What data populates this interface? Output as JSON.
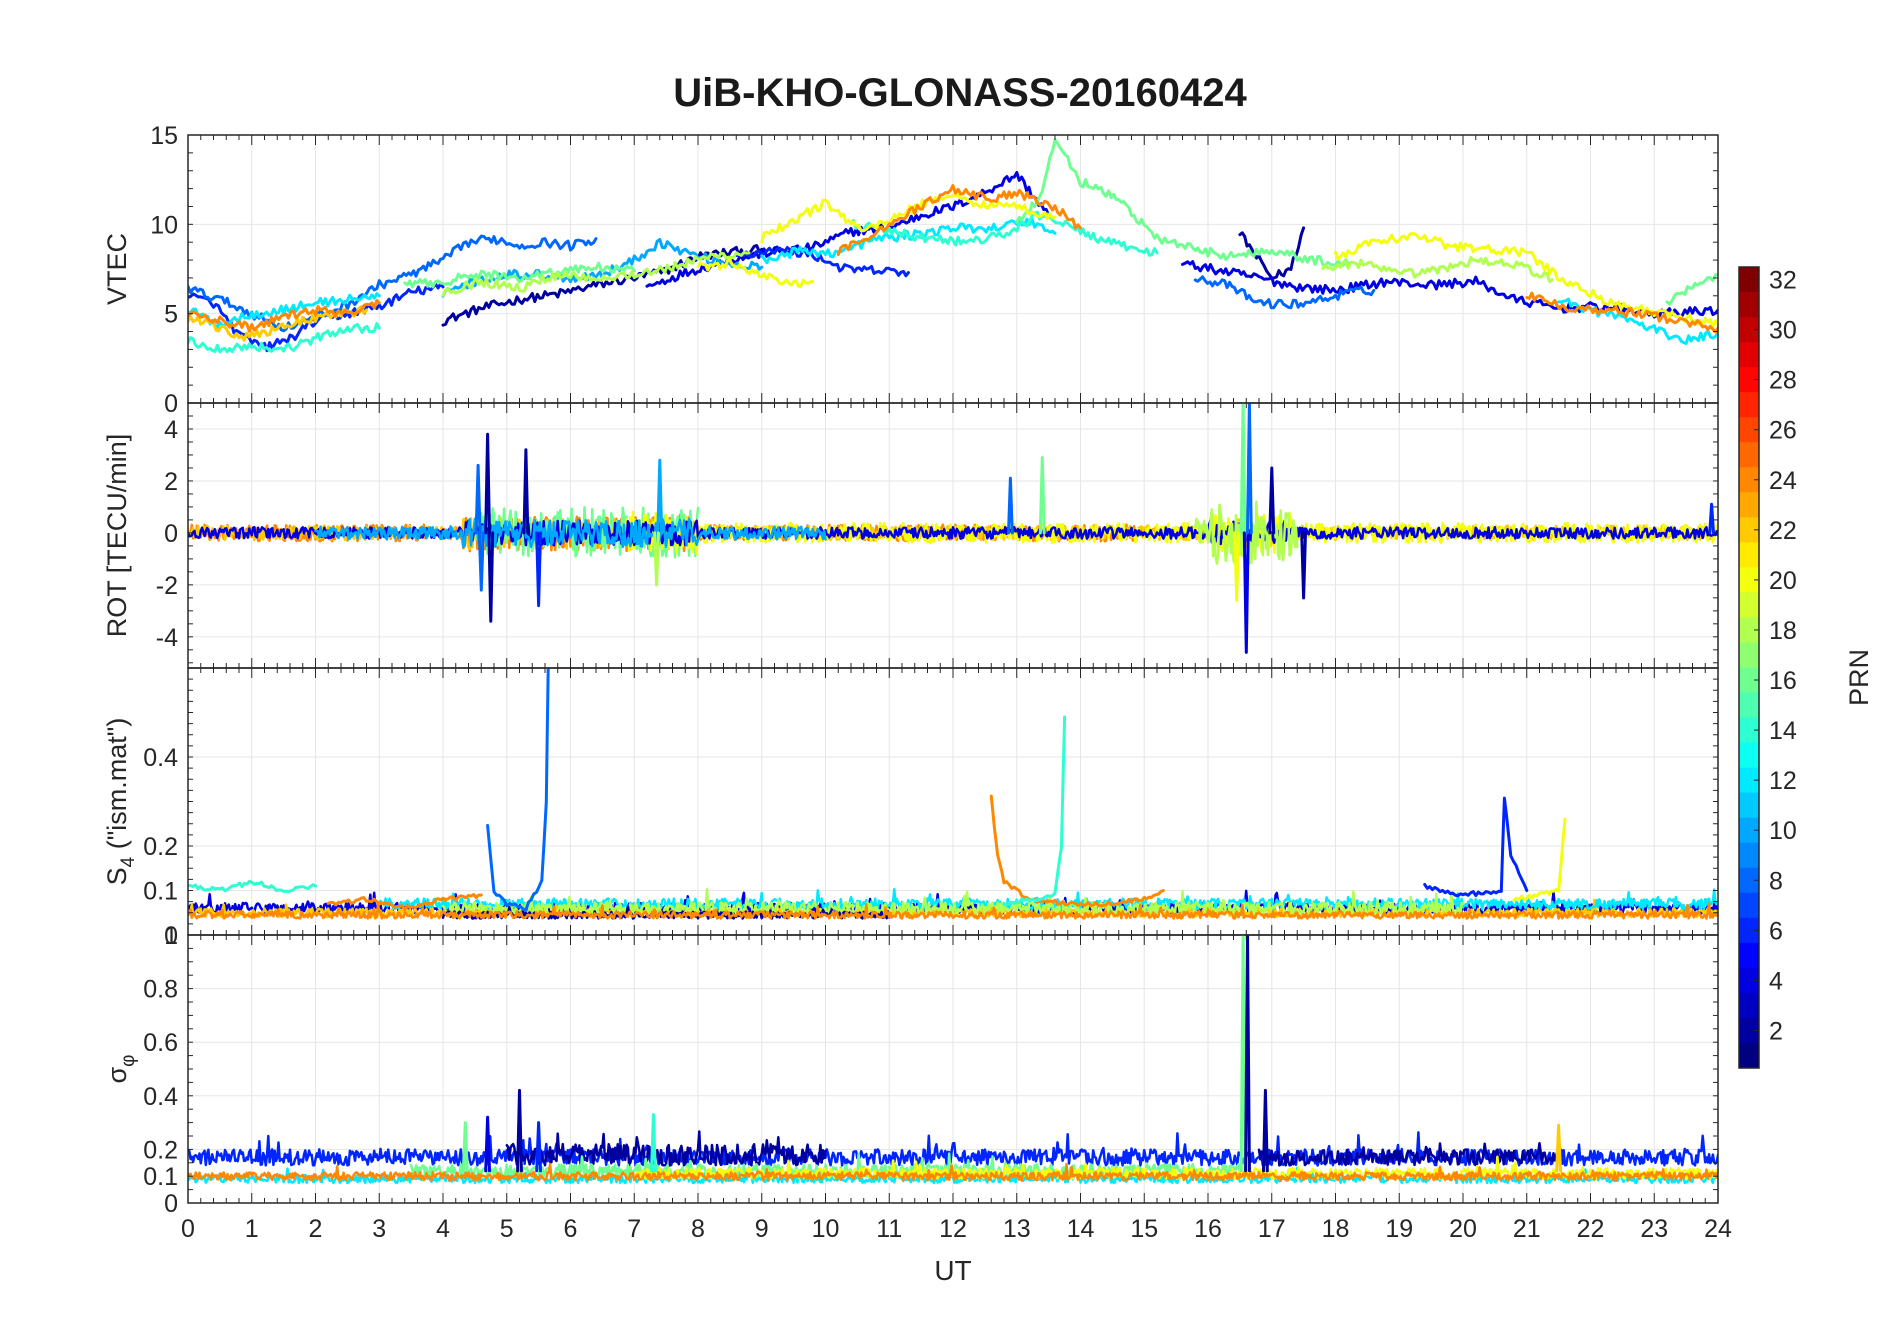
{
  "figure_title": "UiB-KHO-GLONASS-20160424",
  "chart_data": [
    {
      "type": "line",
      "panel": "vtec",
      "ylabel": "VTEC",
      "xlim": [
        0,
        24
      ],
      "ylim": [
        0,
        15
      ],
      "yticks": [
        0,
        5,
        10,
        15
      ],
      "grid": true,
      "series": [
        {
          "prn": 2,
          "x": [
            4.0,
            4.6,
            5.2,
            5.8,
            6.4,
            7.0,
            7.5,
            8.0,
            8.4,
            9.0
          ],
          "y": [
            4.6,
            5.3,
            5.8,
            6.1,
            6.6,
            7.0,
            7.4,
            8.2,
            8.4,
            8.6
          ]
        },
        {
          "prn": 2,
          "x": [
            16.5,
            16.8,
            17.0,
            17.3,
            17.5
          ],
          "y": [
            9.5,
            8.0,
            7.0,
            7.5,
            9.8
          ]
        },
        {
          "prn": 4,
          "x": [
            7.2,
            7.8,
            8.5,
            9.2,
            9.8,
            10.4,
            11.0,
            11.5,
            12.0,
            12.5,
            13.0,
            13.5
          ],
          "y": [
            6.5,
            7.3,
            8.0,
            8.5,
            8.7,
            9.6,
            9.8,
            10.5,
            11.0,
            11.8,
            12.8,
            10.5
          ]
        },
        {
          "prn": 4,
          "x": [
            15.6,
            16.2,
            16.8,
            17.4,
            18.0,
            18.8,
            19.5,
            20.2,
            20.8,
            21.5,
            22.2,
            23.0,
            24.0
          ],
          "y": [
            7.8,
            7.4,
            7.0,
            6.5,
            6.3,
            6.8,
            6.6,
            6.8,
            5.8,
            5.3,
            5.4,
            5.0,
            5.2
          ]
        },
        {
          "prn": 6,
          "x": [
            0.0,
            0.4,
            0.8,
            1.2,
            1.6,
            2.0,
            2.5,
            3.0,
            3.5,
            4.0
          ],
          "y": [
            6.0,
            5.6,
            3.8,
            3.1,
            3.6,
            4.6,
            5.0,
            5.4,
            6.2,
            6.5
          ]
        },
        {
          "prn": 6,
          "x": [
            8.6,
            9.2,
            9.8,
            10.3,
            10.8,
            11.3
          ],
          "y": [
            8.2,
            8.6,
            8.3,
            7.5,
            7.4,
            7.3
          ]
        },
        {
          "prn": 8,
          "x": [
            0.0,
            0.5,
            1.0,
            1.5,
            2.0,
            2.5,
            3.0,
            3.5,
            4.0,
            4.4,
            4.8,
            5.2,
            5.6,
            6.0,
            6.4
          ],
          "y": [
            6.4,
            5.8,
            5.0,
            4.2,
            4.8,
            5.5,
            6.6,
            7.2,
            8.0,
            9.0,
            9.2,
            8.8,
            9.0,
            8.8,
            9.2
          ]
        },
        {
          "prn": 8,
          "x": [
            15.8,
            16.3,
            16.8,
            17.3,
            17.8,
            18.2,
            18.6
          ],
          "y": [
            7.0,
            6.6,
            5.6,
            5.5,
            5.8,
            6.2,
            6.3
          ]
        },
        {
          "prn": 10,
          "x": [
            4.0,
            4.5,
            5.0,
            5.5,
            6.0,
            6.5,
            7.0,
            7.4,
            8.0,
            8.5,
            9.0
          ],
          "y": [
            6.2,
            6.8,
            7.2,
            7.2,
            7.0,
            7.2,
            8.0,
            9.0,
            8.2,
            7.8,
            7.6
          ]
        },
        {
          "prn": 12,
          "x": [
            0.0,
            0.5,
            1.0,
            1.5,
            2.0,
            2.5,
            3.0
          ],
          "y": [
            5.2,
            4.4,
            5.0,
            5.2,
            5.6,
            5.8,
            6.0
          ]
        },
        {
          "prn": 12,
          "x": [
            9.0,
            9.6,
            10.2,
            10.8,
            11.4,
            12.0,
            12.6,
            13.2,
            13.6
          ],
          "y": [
            8.0,
            8.5,
            8.4,
            9.2,
            9.4,
            9.8,
            9.8,
            10.2,
            9.5
          ]
        },
        {
          "prn": 12,
          "x": [
            21.5,
            22.0,
            22.5,
            23.0,
            23.5,
            24.0
          ],
          "y": [
            5.8,
            5.2,
            4.8,
            4.1,
            3.5,
            3.9
          ]
        },
        {
          "prn": 14,
          "x": [
            0.0,
            0.5,
            1.0,
            1.5,
            2.0,
            2.5,
            3.0
          ],
          "y": [
            3.5,
            3.0,
            3.2,
            3.0,
            3.6,
            4.2,
            4.2
          ]
        },
        {
          "prn": 14,
          "x": [
            10.4,
            11.0,
            11.6,
            12.2,
            12.8,
            13.4,
            14.0,
            14.6,
            15.2
          ],
          "y": [
            10.0,
            9.6,
            9.2,
            9.0,
            9.4,
            10.6,
            9.6,
            8.8,
            8.4
          ]
        },
        {
          "prn": 16,
          "x": [
            3.4,
            4.0,
            4.6,
            5.2,
            5.8,
            6.4,
            7.0
          ],
          "y": [
            6.6,
            6.8,
            7.2,
            7.0,
            7.4,
            7.6,
            7.4
          ]
        },
        {
          "prn": 16,
          "x": [
            13.0,
            13.4,
            13.6,
            14.0,
            14.6,
            15.2,
            15.8,
            16.4,
            17.0,
            17.6,
            18.2
          ],
          "y": [
            10.0,
            11.6,
            14.8,
            12.4,
            11.4,
            9.2,
            8.6,
            8.2,
            8.6,
            8.0,
            7.8
          ]
        },
        {
          "prn": 16,
          "x": [
            23.2,
            23.6,
            24.0
          ],
          "y": [
            5.6,
            6.6,
            7.2
          ]
        },
        {
          "prn": 18,
          "x": [
            4.0,
            4.6,
            5.2,
            5.8,
            6.4,
            7.0,
            7.6,
            8.2,
            8.8
          ],
          "y": [
            6.2,
            6.8,
            6.4,
            7.2,
            7.0,
            7.2,
            7.6,
            8.2,
            8.4
          ]
        },
        {
          "prn": 18,
          "x": [
            17.8,
            18.4,
            19.0,
            19.6,
            20.2,
            20.8,
            21.4
          ],
          "y": [
            7.6,
            7.8,
            7.2,
            7.4,
            8.0,
            7.8,
            6.9
          ]
        },
        {
          "prn": 20,
          "x": [
            8.0,
            8.5,
            9.0,
            9.5,
            9.8
          ],
          "y": [
            7.6,
            7.8,
            7.2,
            6.6,
            6.8
          ]
        },
        {
          "prn": 20,
          "x": [
            9.0,
            9.6,
            10.0,
            10.6,
            11.2,
            11.8,
            12.4,
            13.0,
            13.6
          ],
          "y": [
            9.2,
            10.4,
            11.2,
            9.6,
            10.6,
            11.6,
            11.2,
            11.0,
            10.4
          ]
        },
        {
          "prn": 20,
          "x": [
            18.0,
            18.6,
            19.2,
            19.8,
            20.4,
            21.0,
            21.6,
            22.2,
            22.8,
            23.4,
            24.0
          ],
          "y": [
            8.2,
            9.0,
            9.4,
            8.8,
            8.6,
            8.4,
            6.8,
            5.8,
            5.2,
            4.8,
            4.4
          ]
        },
        {
          "prn": 22,
          "x": [
            0.0,
            0.4,
            0.8,
            1.2,
            1.6,
            2.0,
            2.4,
            2.8
          ],
          "y": [
            4.8,
            4.4,
            3.6,
            4.0,
            4.4,
            4.8,
            5.0,
            5.2
          ]
        },
        {
          "prn": 24,
          "x": [
            0.0,
            0.5,
            1.0,
            1.5,
            2.0,
            2.5,
            3.0
          ],
          "y": [
            5.0,
            4.6,
            4.2,
            4.8,
            5.2,
            5.0,
            5.6
          ]
        },
        {
          "prn": 24,
          "x": [
            10.2,
            10.8,
            11.4,
            12.0,
            12.6,
            13.0,
            13.6,
            14.0
          ],
          "y": [
            8.4,
            9.6,
            10.8,
            12.0,
            11.4,
            11.8,
            11.0,
            9.8
          ]
        },
        {
          "prn": 24,
          "x": [
            21.0,
            21.6,
            22.2,
            22.8,
            23.4,
            24.0
          ],
          "y": [
            6.0,
            5.4,
            5.2,
            5.0,
            4.6,
            4.2
          ]
        }
      ]
    },
    {
      "type": "line",
      "panel": "rot",
      "ylabel": "ROT [TECU/min]",
      "xlim": [
        0,
        24
      ],
      "ylim": [
        -5.2,
        5
      ],
      "yticks": [
        -4,
        -2,
        0,
        2,
        4
      ],
      "grid": true,
      "series": [
        {
          "prn": 24,
          "noise": 0.32,
          "start": 0.0,
          "end": 15.2
        },
        {
          "prn": 22,
          "noise": 0.28,
          "start": 0.0,
          "end": 24.0
        },
        {
          "prn": 16,
          "noise": 0.45,
          "start": 4.5,
          "end": 8.0
        },
        {
          "prn": 20,
          "noise": 0.38,
          "start": 6.8,
          "end": 24.0
        },
        {
          "prn": 4,
          "noise": 0.22,
          "start": 0.0,
          "end": 24.0
        },
        {
          "prn": 10,
          "noise": 0.25,
          "start": 2.0,
          "end": 10.0
        },
        {
          "prn": 18,
          "noise": 0.55,
          "start": 15.8,
          "end": 17.4
        }
      ],
      "spikes": [
        {
          "prn": 2,
          "x": 4.7,
          "y": 3.8
        },
        {
          "prn": 2,
          "x": 4.75,
          "y": -3.4
        },
        {
          "prn": 2,
          "x": 5.3,
          "y": 3.2
        },
        {
          "prn": 6,
          "x": 5.5,
          "y": -2.8
        },
        {
          "prn": 8,
          "x": 4.55,
          "y": 2.6
        },
        {
          "prn": 8,
          "x": 4.6,
          "y": -2.2
        },
        {
          "prn": 10,
          "x": 7.4,
          "y": 2.8
        },
        {
          "prn": 18,
          "x": 7.35,
          "y": -2.0
        },
        {
          "prn": 16,
          "x": 13.4,
          "y": 2.9
        },
        {
          "prn": 8,
          "x": 12.9,
          "y": 2.1
        },
        {
          "prn": 16,
          "x": 16.55,
          "y": 5.0
        },
        {
          "prn": 20,
          "x": 16.45,
          "y": -2.6
        },
        {
          "prn": 4,
          "x": 16.6,
          "y": -4.6
        },
        {
          "prn": 8,
          "x": 16.65,
          "y": 5.0
        },
        {
          "prn": 2,
          "x": 17.0,
          "y": 2.5
        },
        {
          "prn": 2,
          "x": 17.5,
          "y": -2.5
        },
        {
          "prn": 6,
          "x": 23.9,
          "y": 1.1
        }
      ]
    },
    {
      "type": "line",
      "panel": "s4",
      "ylabel": "S4 (\"ism.mat\")",
      "ylabel_main": "S",
      "ylabel_sub": "4",
      "ylabel_rest": " (\"ism.mat\")",
      "xlim": [
        0,
        24
      ],
      "ylim": [
        0,
        0.6
      ],
      "yticks": [
        0,
        0.1,
        0.2,
        0.4
      ],
      "grid": true,
      "series": [
        {
          "prn": 14,
          "x": [
            0.0,
            0.5,
            1.0,
            1.5,
            2.0
          ],
          "y": [
            0.11,
            0.1,
            0.12,
            0.1,
            0.11
          ]
        },
        {
          "prn": 24,
          "x": [
            2.2,
            2.8,
            3.4,
            4.0,
            4.6
          ],
          "y": [
            0.07,
            0.08,
            0.06,
            0.08,
            0.09
          ]
        },
        {
          "prn": 8,
          "x": [
            4.7,
            4.8,
            5.0,
            5.3,
            5.55,
            5.62,
            5.65
          ],
          "y": [
            0.25,
            0.1,
            0.07,
            0.06,
            0.12,
            0.3,
            0.6
          ]
        },
        {
          "prn": 24,
          "x": [
            12.6,
            12.7,
            12.8,
            13.2,
            13.8,
            14.4,
            15.0,
            15.3
          ],
          "y": [
            0.31,
            0.18,
            0.12,
            0.08,
            0.07,
            0.07,
            0.08,
            0.1
          ]
        },
        {
          "prn": 14,
          "x": [
            12.8,
            13.2,
            13.6,
            13.7,
            13.75
          ],
          "y": [
            0.07,
            0.08,
            0.09,
            0.2,
            0.49
          ]
        },
        {
          "prn": 6,
          "x": [
            19.4,
            20.0,
            20.6,
            20.65,
            20.75,
            21.0
          ],
          "y": [
            0.11,
            0.09,
            0.1,
            0.31,
            0.18,
            0.1
          ]
        },
        {
          "prn": 20,
          "x": [
            20.8,
            21.2,
            21.5,
            21.55,
            21.6
          ],
          "y": [
            0.08,
            0.09,
            0.1,
            0.18,
            0.26
          ]
        }
      ],
      "base_series": [
        {
          "prn": 4,
          "level": 0.06,
          "noise": 0.012,
          "start": 0.0,
          "end": 24.0
        },
        {
          "prn": 22,
          "level": 0.05,
          "noise": 0.01,
          "start": 0.0,
          "end": 24.0
        },
        {
          "prn": 12,
          "level": 0.07,
          "noise": 0.012,
          "start": 3.0,
          "end": 24.0
        },
        {
          "prn": 18,
          "level": 0.06,
          "noise": 0.014,
          "start": 4.0,
          "end": 20.0
        },
        {
          "prn": 2,
          "level": 0.045,
          "noise": 0.008,
          "start": 4.0,
          "end": 11.0
        },
        {
          "prn": 24,
          "level": 0.045,
          "noise": 0.008,
          "start": 0.0,
          "end": 24.0
        }
      ]
    },
    {
      "type": "line",
      "panel": "sigma-phi",
      "ylabel": "σφ",
      "ylabel_main": "σ",
      "ylabel_sub": "φ",
      "xlabel": "UT",
      "xlim": [
        0,
        24
      ],
      "xticks": [
        0,
        1,
        2,
        3,
        4,
        5,
        6,
        7,
        8,
        9,
        10,
        11,
        12,
        13,
        14,
        15,
        16,
        17,
        18,
        19,
        20,
        21,
        22,
        23,
        24
      ],
      "ylim": [
        0,
        1
      ],
      "yticks": [
        0,
        0.1,
        0.2,
        0.4,
        0.6,
        0.8,
        1
      ],
      "grid": true,
      "base_series": [
        {
          "prn": 6,
          "level": 0.17,
          "noise": 0.03,
          "start": 0.0,
          "end": 24.0
        },
        {
          "prn": 2,
          "level": 0.18,
          "noise": 0.04,
          "start": 5.0,
          "end": 10.0
        },
        {
          "prn": 2,
          "level": 0.17,
          "noise": 0.03,
          "start": 16.8,
          "end": 21.5
        },
        {
          "prn": 12,
          "level": 0.09,
          "noise": 0.015,
          "start": 0.0,
          "end": 24.0
        },
        {
          "prn": 16,
          "level": 0.12,
          "noise": 0.025,
          "start": 3.5,
          "end": 16.5
        },
        {
          "prn": 20,
          "level": 0.11,
          "noise": 0.02,
          "start": 7.0,
          "end": 24.0
        },
        {
          "prn": 24,
          "level": 0.1,
          "noise": 0.015,
          "start": 0.0,
          "end": 24.0
        }
      ],
      "spikes": [
        {
          "prn": 4,
          "x": 4.7,
          "y": 0.32
        },
        {
          "prn": 2,
          "x": 5.2,
          "y": 0.42
        },
        {
          "prn": 16,
          "x": 4.35,
          "y": 0.3
        },
        {
          "prn": 14,
          "x": 7.3,
          "y": 0.33
        },
        {
          "prn": 6,
          "x": 5.5,
          "y": 0.3
        },
        {
          "prn": 16,
          "x": 16.55,
          "y": 1.0
        },
        {
          "prn": 2,
          "x": 16.62,
          "y": 1.0
        },
        {
          "prn": 2,
          "x": 16.9,
          "y": 0.42
        },
        {
          "prn": 22,
          "x": 21.5,
          "y": 0.29
        }
      ]
    }
  ],
  "colorbar": {
    "label": "PRN",
    "min": 1,
    "max": 32,
    "ticks": [
      2,
      4,
      6,
      8,
      10,
      12,
      14,
      16,
      18,
      20,
      22,
      24,
      26,
      28,
      30,
      32
    ],
    "colormap": "jet"
  }
}
